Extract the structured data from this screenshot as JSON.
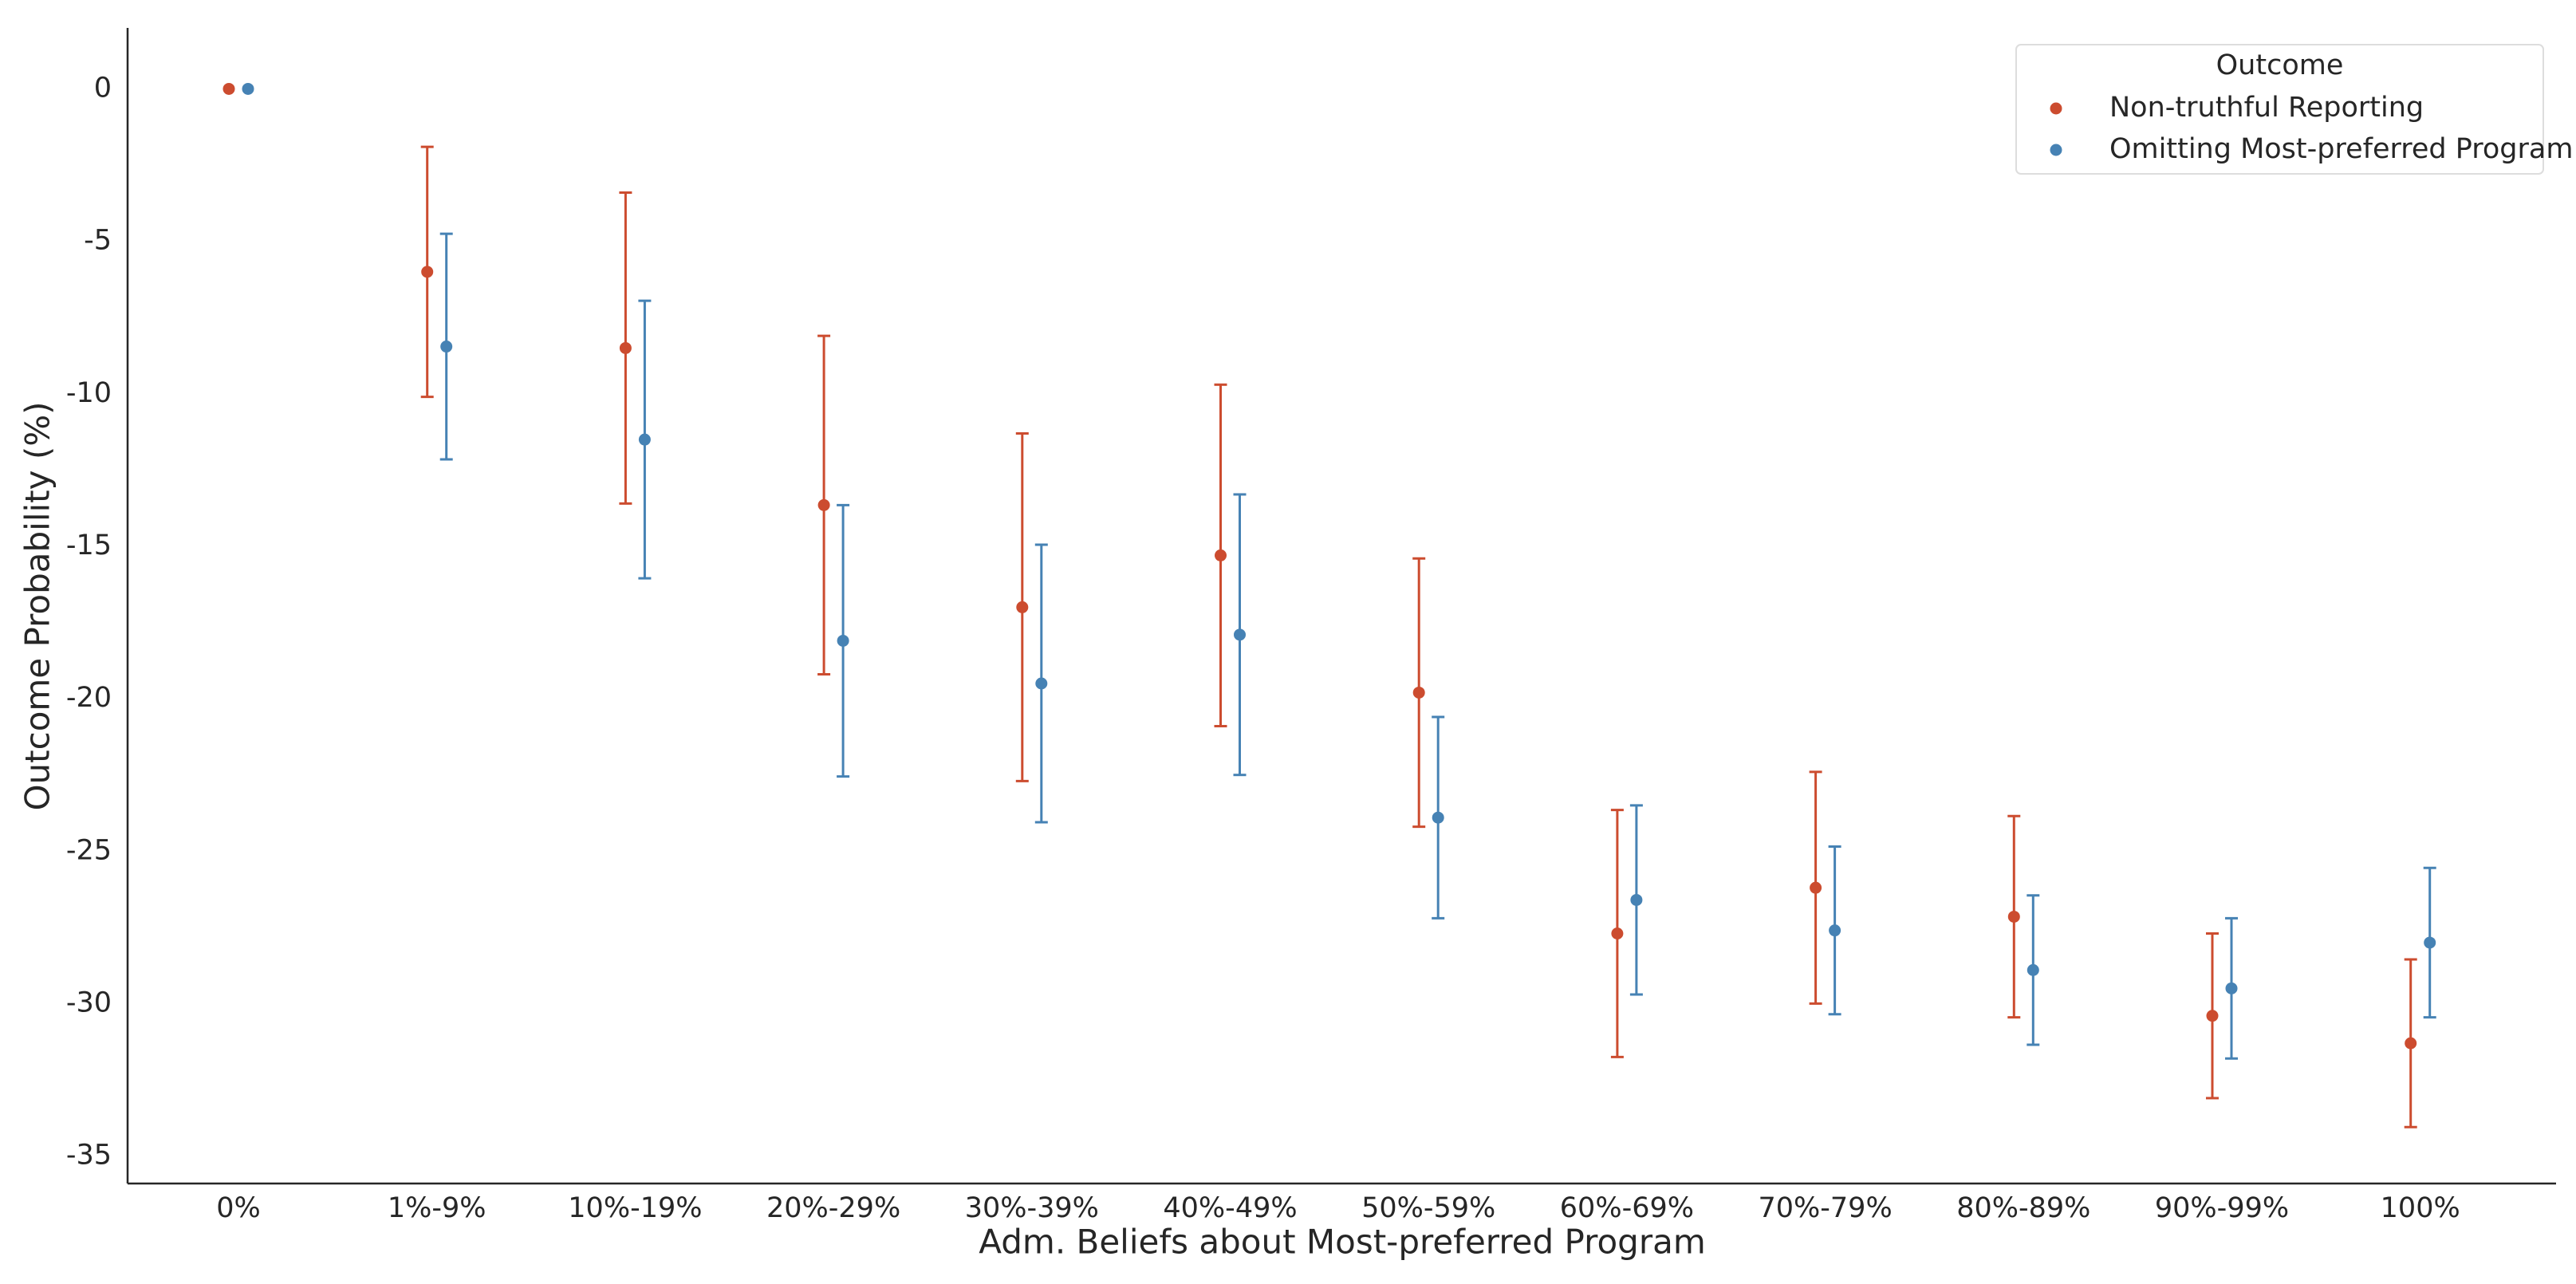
{
  "chart_data": {
    "type": "errorbar",
    "x_label": "Adm. Beliefs about Most-preferred Program",
    "y_label": "Outcome Probability (%)",
    "categories": [
      "0%",
      "1%-9%",
      "10%-19%",
      "20%-29%",
      "30%-39%",
      "40%-49%",
      "50%-59%",
      "60%-69%",
      "70%-79%",
      "80%-89%",
      "90%-99%",
      "100%"
    ],
    "series": [
      {
        "name": "Non-truthful Reporting",
        "color": "#cc4c2f",
        "values": [
          0,
          -6.0,
          -8.5,
          -13.65,
          -17.0,
          -15.3,
          -19.8,
          -27.7,
          -26.2,
          -27.15,
          -30.4,
          -31.3
        ],
        "errors": [
          null,
          4.1,
          5.1,
          5.55,
          5.7,
          5.6,
          4.4,
          4.05,
          3.8,
          3.3,
          2.7,
          2.75
        ]
      },
      {
        "name": "Omitting Most-preferred Program",
        "color": "#4682b4",
        "values": [
          0,
          -8.45,
          -11.5,
          -18.1,
          -19.5,
          -17.9,
          -23.9,
          -26.6,
          -27.6,
          -28.9,
          -29.5,
          -28.0
        ],
        "errors": [
          null,
          3.7,
          4.55,
          4.45,
          4.55,
          4.6,
          3.3,
          3.1,
          2.75,
          2.45,
          2.3,
          2.45
        ]
      }
    ],
    "legend_title": "Outcome",
    "legend_position": "upper right",
    "ylim": [
      -35.9,
      2
    ],
    "yticks": [
      0,
      -5,
      -10,
      -15,
      -20,
      -25,
      -30,
      -35
    ],
    "grid": false
  }
}
